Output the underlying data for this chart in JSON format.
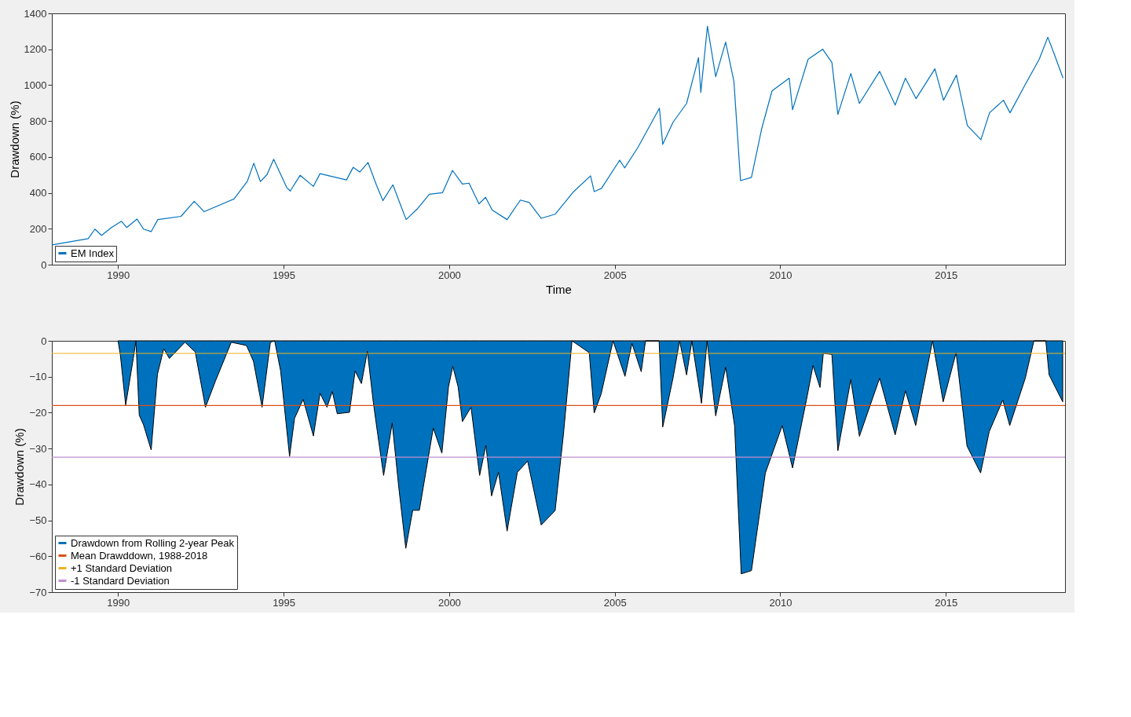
{
  "chart_data": [
    {
      "type": "line",
      "xlabel": "Time",
      "ylabel": "Drawdown (%)",
      "xlim": [
        1988,
        2018.6
      ],
      "xticks": [
        1990,
        1995,
        2000,
        2005,
        2010,
        2015
      ],
      "ylim": [
        0,
        1400
      ],
      "yticks": [
        0,
        200,
        400,
        600,
        800,
        1000,
        1200,
        1400
      ],
      "grid": false,
      "legend": "bottom left",
      "series": [
        {
          "name": "EM Index",
          "color": "#0072bd",
          "x": [
            1988.0,
            1989.1,
            1989.3,
            1989.5,
            1989.8,
            1990.1,
            1990.26,
            1990.57,
            1990.77,
            1991.0,
            1991.2,
            1991.9,
            1992.3,
            1992.6,
            1993.5,
            1993.9,
            1994.1,
            1994.3,
            1994.5,
            1994.7,
            1995.1,
            1995.2,
            1995.5,
            1995.9,
            1996.1,
            1996.9,
            1997.1,
            1997.3,
            1997.55,
            1997.8,
            1998.0,
            1998.3,
            1998.7,
            1999.05,
            1999.4,
            1999.8,
            2000.1,
            2000.4,
            2000.6,
            2000.9,
            2001.1,
            2001.3,
            2001.75,
            2002.15,
            2002.42,
            2002.78,
            2003.2,
            2003.76,
            2004.27,
            2004.38,
            2004.6,
            2005.15,
            2005.3,
            2005.7,
            2006.35,
            2006.45,
            2006.76,
            2007.17,
            2007.53,
            2007.6,
            2007.8,
            2008.05,
            2008.35,
            2008.6,
            2008.8,
            2009.13,
            2009.44,
            2009.75,
            2010.27,
            2010.37,
            2010.84,
            2011.28,
            2011.56,
            2011.74,
            2012.13,
            2012.39,
            2013.0,
            2013.47,
            2013.78,
            2014.1,
            2014.67,
            2014.93,
            2015.32,
            2015.65,
            2016.06,
            2016.32,
            2016.74,
            2016.94,
            2017.4,
            2017.82,
            2018.08,
            2018.28,
            2018.54
          ],
          "values": [
            110,
            145,
            198,
            163,
            207,
            242,
            207,
            254,
            198,
            184,
            251,
            269,
            353,
            295,
            366,
            463,
            565,
            463,
            502,
            587,
            428,
            410,
            498,
            436,
            507,
            472,
            542,
            516,
            569,
            445,
            357,
            445,
            251,
            313,
            392,
            401,
            525,
            449,
            454,
            339,
            375,
            304,
            251,
            360,
            346,
            258,
            281,
            407,
            495,
            407,
            425,
            582,
            539,
            653,
            872,
            670,
            793,
            898,
            1153,
            960,
            1328,
            1047,
            1240,
            1021,
            468,
            486,
            758,
            968,
            1039,
            863,
            1144,
            1200,
            1126,
            837,
            1065,
            898,
            1077,
            889,
            1039,
            925,
            1091,
            916,
            1056,
            775,
            696,
            846,
            916,
            846,
            1004,
            1144,
            1267,
            1170,
            1039
          ]
        }
      ]
    },
    {
      "type": "area",
      "ylabel": "Drawdown (%)",
      "xlim": [
        1988,
        2018.6
      ],
      "xticks": [
        1990,
        1995,
        2000,
        2005,
        2010,
        2015
      ],
      "ylim": [
        -70,
        0
      ],
      "yticks": [
        -70,
        -60,
        -50,
        -40,
        -30,
        -20,
        -10,
        0
      ],
      "grid": false,
      "legend": "bottom left",
      "series": [
        {
          "name": "Drawdown from Rolling 2-year Peak",
          "color": "#0072bd",
          "x": [
            1990.0,
            1990.07,
            1990.23,
            1990.46,
            1990.54,
            1990.64,
            1990.77,
            1991.0,
            1991.19,
            1991.38,
            1991.55,
            1992.02,
            1992.33,
            1992.64,
            1992.95,
            1993.42,
            1993.88,
            1994.09,
            1994.35,
            1994.6,
            1994.73,
            1994.91,
            1995.18,
            1995.33,
            1995.59,
            1995.9,
            1996.1,
            1996.31,
            1996.47,
            1996.62,
            1996.99,
            1997.16,
            1997.35,
            1997.53,
            1997.71,
            1997.83,
            1998.02,
            1998.28,
            1998.48,
            1998.69,
            1998.9,
            1999.1,
            1999.52,
            1999.78,
            1999.98,
            2000.11,
            2000.27,
            2000.4,
            2000.66,
            2000.92,
            2001.11,
            2001.28,
            2001.49,
            2001.75,
            2002.06,
            2002.37,
            2002.78,
            2003.2,
            2003.45,
            2003.71,
            2004.23,
            2004.38,
            2004.59,
            2004.95,
            2005.31,
            2005.52,
            2005.8,
            2005.93,
            2006.34,
            2006.45,
            2006.76,
            2006.96,
            2007.17,
            2007.33,
            2007.62,
            2007.79,
            2008.05,
            2008.35,
            2008.62,
            2008.82,
            2009.13,
            2009.55,
            2010.06,
            2010.37,
            2010.79,
            2010.99,
            2011.2,
            2011.3,
            2011.56,
            2011.74,
            2012.13,
            2012.39,
            2013.0,
            2013.47,
            2013.78,
            2014.09,
            2014.6,
            2014.92,
            2015.31,
            2015.64,
            2016.05,
            2016.31,
            2016.72,
            2016.93,
            2017.4,
            2017.66,
            2018.02,
            2018.12,
            2018.53
          ],
          "values": [
            0,
            -4,
            -17.9,
            -4.9,
            0,
            -20.7,
            -23.4,
            -30.4,
            -9.3,
            -2.2,
            -4.9,
            -0.4,
            -3.1,
            -18.5,
            -11,
            -0.4,
            -1.3,
            -5.7,
            -18.5,
            -0.4,
            0,
            -8.4,
            -32.2,
            -21.6,
            -16.3,
            -26.5,
            -14.6,
            -18.5,
            -14.1,
            -20.3,
            -19.9,
            -8.4,
            -11.9,
            -2.9,
            -17.2,
            -25.2,
            -37.5,
            -22.9,
            -41.0,
            -57.8,
            -47.2,
            -47.2,
            -24.3,
            -31.3,
            -12.8,
            -7.1,
            -12.8,
            -22.5,
            -18.5,
            -37.5,
            -29.1,
            -43.2,
            -36.6,
            -53.0,
            -36.6,
            -33.5,
            -51.3,
            -47.3,
            -26.2,
            0,
            -3.3,
            -20.1,
            -14.8,
            0,
            -9.9,
            -0.7,
            -8.6,
            0,
            0,
            -24,
            -10.4,
            0,
            -9.5,
            0,
            -17.4,
            0,
            -20.9,
            -7.3,
            -23.6,
            -64.9,
            -64.0,
            -36.8,
            -23.6,
            -35.4,
            -16.5,
            -6.9,
            -13,
            -3.5,
            -3.8,
            -30.6,
            -10.8,
            -26.6,
            -10.4,
            -26.2,
            -13.9,
            -23.6,
            0,
            -17,
            -3.3,
            -29.3,
            -36.8,
            -25.3,
            -16.5,
            -23.6,
            -10.4,
            0,
            0,
            -9.5,
            -17
          ]
        }
      ],
      "ref_lines": [
        {
          "axis": "y",
          "value": -18.0,
          "label": "Mean Drawddown, 1988-2018",
          "color": "#d95319"
        },
        {
          "axis": "y",
          "value": -3.5,
          "label": "+1 Standard Deviation",
          "color": "#edb120"
        },
        {
          "axis": "y",
          "value": -32.4,
          "label": "-1 Standard Deviation",
          "color": "#c08fd0"
        }
      ]
    }
  ]
}
